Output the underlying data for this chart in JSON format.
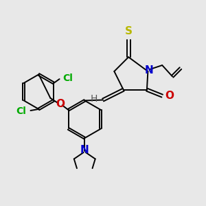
{
  "background_color": "#e8e8e8",
  "fig_width": 3.0,
  "fig_height": 3.0,
  "dpi": 100,
  "lw": 1.4,
  "colors": {
    "bond": "#000000",
    "S": "#b8b800",
    "N": "#0000cc",
    "O": "#cc0000",
    "Cl": "#00aa00",
    "H": "#555555"
  }
}
